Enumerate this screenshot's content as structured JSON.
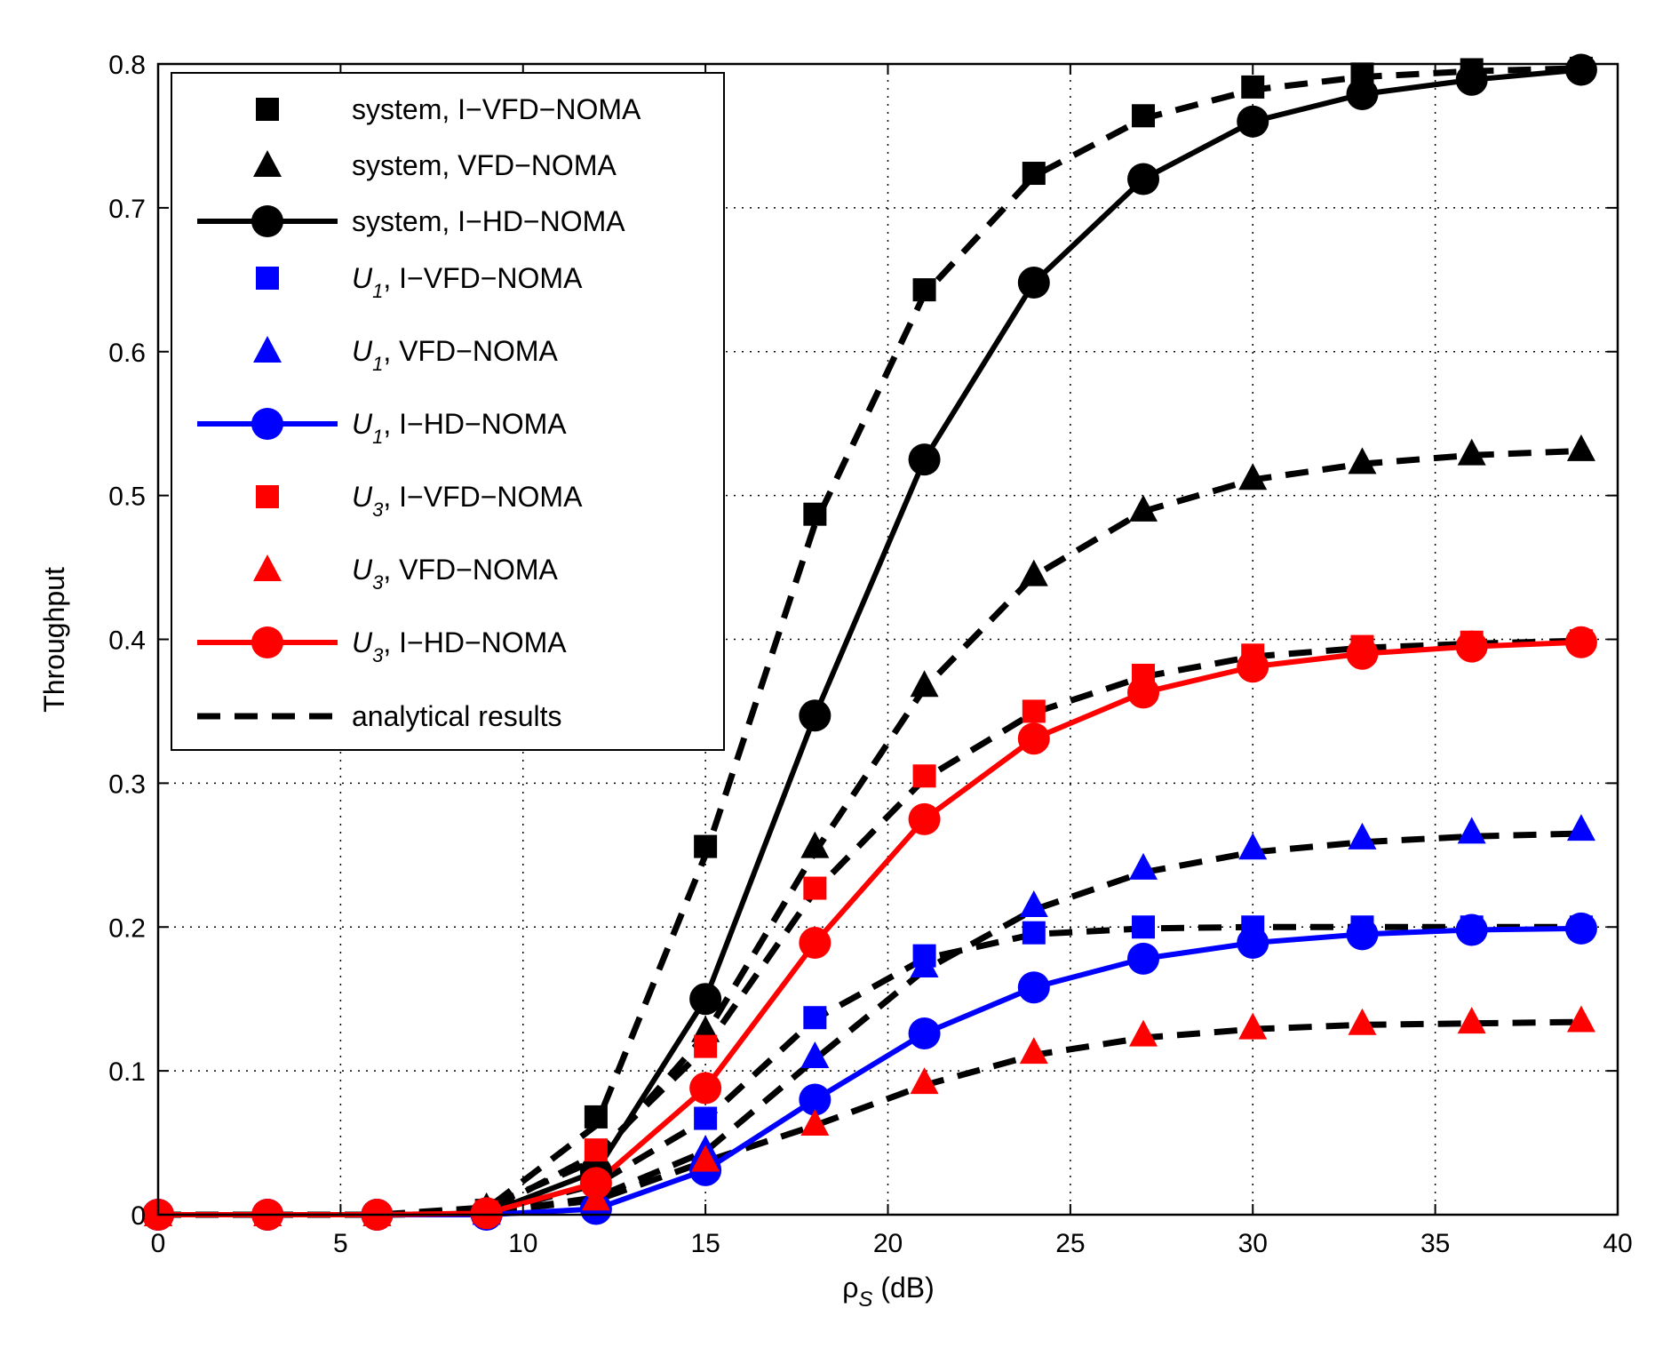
{
  "chart_data": {
    "type": "line",
    "xlabel": "ρS (dB)",
    "xlabel_base": "ρ",
    "xlabel_sub": "S",
    "xlabel_unit": " (dB)",
    "ylabel": "Throughput",
    "xlim": [
      0,
      40
    ],
    "ylim": [
      0,
      0.8
    ],
    "xticks": [
      0,
      5,
      10,
      15,
      20,
      25,
      30,
      35,
      40
    ],
    "yticks": [
      0,
      0.1,
      0.2,
      0.3,
      0.4,
      0.5,
      0.6,
      0.7,
      0.8
    ],
    "xtick_labels": [
      "0",
      "5",
      "10",
      "15",
      "20",
      "25",
      "30",
      "35",
      "40"
    ],
    "ytick_labels": [
      "0",
      "0.1",
      "0.2",
      "0.3",
      "0.4",
      "0.5",
      "0.6",
      "0.7",
      "0.8"
    ],
    "grid": true,
    "legend_position": "top-left",
    "colors": {
      "black": "#000000",
      "blue": "#0000ff",
      "red": "#ff0000"
    },
    "series": [
      {
        "name": "system, I-VFD-NOMA",
        "legend_prefix": "system, ",
        "legend_sub": "",
        "legend_suffix": "I−VFD−NOMA",
        "color": "#000000",
        "marker": "square",
        "line": "none",
        "x": [
          0,
          3,
          6,
          9,
          12,
          15,
          18,
          21,
          24,
          27,
          30,
          33,
          36,
          39
        ],
        "values": [
          0,
          0,
          0,
          0.003,
          0.068,
          0.256,
          0.487,
          0.643,
          0.724,
          0.764,
          0.784,
          0.793,
          0.796,
          0.797
        ]
      },
      {
        "name": "system, VFD-NOMA",
        "legend_prefix": "system, ",
        "legend_sub": "",
        "legend_suffix": "VFD−NOMA",
        "color": "#000000",
        "marker": "triangle",
        "line": "none",
        "x": [
          0,
          3,
          6,
          9,
          12,
          15,
          18,
          21,
          24,
          27,
          30,
          33,
          36,
          39
        ],
        "values": [
          0,
          0,
          0,
          0.005,
          0.04,
          0.128,
          0.256,
          0.368,
          0.445,
          0.49,
          0.512,
          0.523,
          0.529,
          0.532
        ]
      },
      {
        "name": "system, I-HD-NOMA",
        "legend_prefix": "system, ",
        "legend_sub": "",
        "legend_suffix": "I−HD−NOMA",
        "color": "#000000",
        "marker": "circle",
        "line": "solid",
        "x": [
          0,
          3,
          6,
          9,
          12,
          15,
          18,
          21,
          24,
          27,
          30,
          33,
          36,
          39
        ],
        "values": [
          0,
          0,
          0,
          0.001,
          0.03,
          0.15,
          0.347,
          0.525,
          0.648,
          0.72,
          0.76,
          0.779,
          0.789,
          0.796
        ]
      },
      {
        "name": "U1, I-VFD-NOMA",
        "legend_prefix": "U",
        "legend_sub": "1",
        "legend_suffix": ", I−VFD−NOMA",
        "color": "#0000ff",
        "marker": "square",
        "line": "none",
        "x": [
          0,
          3,
          6,
          9,
          12,
          15,
          18,
          21,
          24,
          27,
          30,
          33,
          36,
          39
        ],
        "values": [
          0,
          0,
          0,
          0.001,
          0.022,
          0.067,
          0.137,
          0.18,
          0.196,
          0.2,
          0.2,
          0.2,
          0.2,
          0.2
        ]
      },
      {
        "name": "U1, VFD-NOMA",
        "legend_prefix": "U",
        "legend_sub": "1",
        "legend_suffix": ", VFD−NOMA",
        "color": "#0000ff",
        "marker": "triangle",
        "line": "none",
        "x": [
          0,
          3,
          6,
          9,
          12,
          15,
          18,
          21,
          24,
          27,
          30,
          33,
          36,
          39
        ],
        "values": [
          0,
          0,
          0,
          0.001,
          0.013,
          0.045,
          0.11,
          0.173,
          0.215,
          0.241,
          0.255,
          0.262,
          0.266,
          0.268
        ]
      },
      {
        "name": "U1, I-HD-NOMA",
        "legend_prefix": "U",
        "legend_sub": "1",
        "legend_suffix": ", I−HD−NOMA",
        "color": "#0000ff",
        "marker": "circle",
        "line": "solid",
        "x": [
          0,
          3,
          6,
          9,
          12,
          15,
          18,
          21,
          24,
          27,
          30,
          33,
          36,
          39
        ],
        "values": [
          0,
          0,
          0,
          0,
          0.004,
          0.031,
          0.08,
          0.126,
          0.158,
          0.178,
          0.189,
          0.195,
          0.198,
          0.199
        ]
      },
      {
        "name": "U3, I-VFD-NOMA",
        "legend_prefix": "U",
        "legend_sub": "3",
        "legend_suffix": ", I−VFD−NOMA",
        "color": "#ff0000",
        "marker": "square",
        "line": "none",
        "x": [
          0,
          3,
          6,
          9,
          12,
          15,
          18,
          21,
          24,
          27,
          30,
          33,
          36,
          39
        ],
        "values": [
          0,
          0,
          0,
          0.002,
          0.045,
          0.117,
          0.227,
          0.305,
          0.35,
          0.375,
          0.389,
          0.395,
          0.398,
          0.399
        ]
      },
      {
        "name": "U3, VFD-NOMA",
        "legend_prefix": "U",
        "legend_sub": "3",
        "legend_suffix": ", VFD−NOMA",
        "color": "#ff0000",
        "marker": "triangle",
        "line": "none",
        "x": [
          0,
          3,
          6,
          9,
          12,
          15,
          18,
          21,
          24,
          27,
          30,
          33,
          36,
          39
        ],
        "values": [
          0,
          0,
          0,
          0.002,
          0.011,
          0.038,
          0.063,
          0.092,
          0.113,
          0.125,
          0.13,
          0.133,
          0.134,
          0.135
        ]
      },
      {
        "name": "U3, I-HD-NOMA",
        "legend_prefix": "U",
        "legend_sub": "3",
        "legend_suffix": ", I−HD−NOMA",
        "color": "#ff0000",
        "marker": "circle",
        "line": "solid",
        "x": [
          0,
          3,
          6,
          9,
          12,
          15,
          18,
          21,
          24,
          27,
          30,
          33,
          36,
          39
        ],
        "values": [
          0,
          0,
          0,
          0.001,
          0.022,
          0.088,
          0.189,
          0.275,
          0.331,
          0.363,
          0.381,
          0.39,
          0.395,
          0.398
        ]
      },
      {
        "name": "analytical results",
        "legend_prefix": "analytical results",
        "legend_sub": "",
        "legend_suffix": "",
        "color": "#000000",
        "marker": "none",
        "line": "dashed",
        "legend_only": true
      }
    ],
    "analytical_curves": [
      {
        "target": "system, I-VFD-NOMA",
        "x": [
          0,
          3,
          6,
          9,
          12,
          15,
          18,
          21,
          24,
          27,
          30,
          33,
          36,
          39
        ],
        "values": [
          0,
          0,
          0,
          0.004,
          0.062,
          0.25,
          0.48,
          0.64,
          0.722,
          0.762,
          0.782,
          0.791,
          0.795,
          0.797
        ]
      },
      {
        "target": "system, VFD-NOMA",
        "x": [
          0,
          3,
          6,
          9,
          12,
          15,
          18,
          21,
          24,
          27,
          30,
          33,
          36,
          39
        ],
        "values": [
          0,
          0,
          0,
          0.005,
          0.038,
          0.125,
          0.252,
          0.366,
          0.444,
          0.489,
          0.511,
          0.522,
          0.528,
          0.531
        ]
      },
      {
        "target": "U1, I-VFD-NOMA",
        "x": [
          0,
          3,
          6,
          9,
          12,
          15,
          18,
          21,
          24,
          27,
          30,
          33,
          36,
          39
        ],
        "values": [
          0,
          0,
          0,
          0.001,
          0.021,
          0.066,
          0.136,
          0.178,
          0.195,
          0.199,
          0.2,
          0.2,
          0.2,
          0.2
        ]
      },
      {
        "target": "U1, VFD-NOMA",
        "x": [
          0,
          3,
          6,
          9,
          12,
          15,
          18,
          21,
          24,
          27,
          30,
          33,
          36,
          39
        ],
        "values": [
          0,
          0,
          0,
          0.001,
          0.012,
          0.044,
          0.108,
          0.17,
          0.212,
          0.238,
          0.252,
          0.259,
          0.263,
          0.265
        ]
      },
      {
        "target": "U3, I-VFD-NOMA",
        "x": [
          0,
          3,
          6,
          9,
          12,
          15,
          18,
          21,
          24,
          27,
          30,
          33,
          36,
          39
        ],
        "values": [
          0,
          0,
          0,
          0.002,
          0.042,
          0.116,
          0.225,
          0.303,
          0.349,
          0.374,
          0.388,
          0.394,
          0.397,
          0.399
        ]
      },
      {
        "target": "U3, VFD-NOMA",
        "x": [
          0,
          3,
          6,
          9,
          12,
          15,
          18,
          21,
          24,
          27,
          30,
          33,
          36,
          39
        ],
        "values": [
          0,
          0,
          0,
          0.002,
          0.01,
          0.037,
          0.062,
          0.09,
          0.111,
          0.123,
          0.129,
          0.132,
          0.133,
          0.134
        ]
      }
    ]
  }
}
